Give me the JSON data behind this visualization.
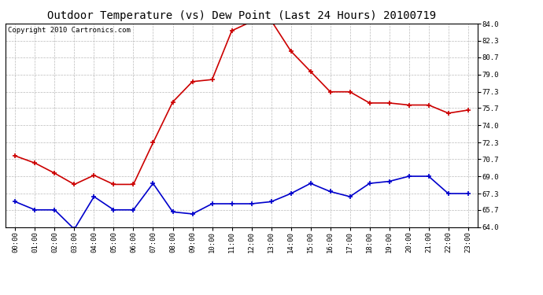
{
  "title": "Outdoor Temperature (vs) Dew Point (Last 24 Hours) 20100719",
  "copyright": "Copyright 2010 Cartronics.com",
  "x_labels": [
    "00:00",
    "01:00",
    "02:00",
    "03:00",
    "04:00",
    "05:00",
    "06:00",
    "07:00",
    "08:00",
    "09:00",
    "10:00",
    "11:00",
    "12:00",
    "13:00",
    "14:00",
    "15:00",
    "16:00",
    "17:00",
    "18:00",
    "19:00",
    "20:00",
    "21:00",
    "22:00",
    "23:00"
  ],
  "temp_red": [
    71.0,
    70.3,
    69.3,
    68.2,
    69.1,
    68.2,
    68.2,
    72.3,
    76.3,
    78.3,
    78.5,
    83.3,
    84.2,
    84.3,
    81.3,
    79.3,
    77.3,
    77.3,
    76.2,
    76.2,
    76.0,
    76.0,
    75.2,
    75.5
  ],
  "dew_blue": [
    66.5,
    65.7,
    65.7,
    63.8,
    67.0,
    65.7,
    65.7,
    68.3,
    65.5,
    65.3,
    66.3,
    66.3,
    66.3,
    66.5,
    67.3,
    68.3,
    67.5,
    67.0,
    68.3,
    68.5,
    69.0,
    69.0,
    67.3,
    67.3
  ],
  "ylim_min": 64.0,
  "ylim_max": 84.0,
  "yticks": [
    64.0,
    65.7,
    67.3,
    69.0,
    70.7,
    72.3,
    74.0,
    75.7,
    77.3,
    79.0,
    80.7,
    82.3,
    84.0
  ],
  "background_color": "#ffffff",
  "plot_bg_color": "#ffffff",
  "grid_color": "#bbbbbb",
  "temp_color": "#cc0000",
  "dew_color": "#0000cc",
  "title_fontsize": 10,
  "copyright_fontsize": 6.5
}
